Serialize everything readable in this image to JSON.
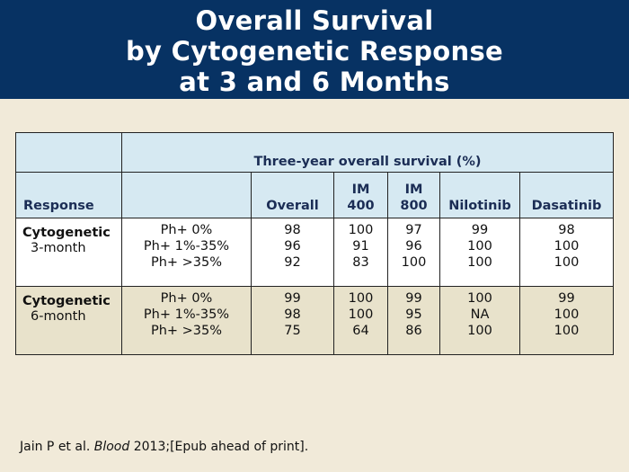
{
  "title": {
    "lines": [
      "Overall Survival",
      "by Cytogenetic Response",
      "at 3 and 6 Months"
    ]
  },
  "table": {
    "group_header": "Three-year overall survival (%)",
    "columns": {
      "response": "Response",
      "overall": "Overall",
      "im400_a": "IM",
      "im400_b": "400",
      "im800_a": "IM",
      "im800_b": "800",
      "nilotinib": "Nilotinib",
      "dasatinib": "Dasatinib"
    },
    "rows": [
      {
        "response": "Cytogenetic",
        "timepoint": "3-month",
        "ph": [
          "Ph+ 0%",
          "Ph+ 1%-35%",
          "Ph+ >35%"
        ],
        "overall": [
          "98",
          "96",
          "92"
        ],
        "im400": [
          "100",
          "91",
          "83"
        ],
        "im800": [
          "97",
          "96",
          "100"
        ],
        "nilotinib": [
          "99",
          "100",
          "100"
        ],
        "dasatinib": [
          "98",
          "100",
          "100"
        ]
      },
      {
        "response": "Cytogenetic",
        "timepoint": "6-month",
        "ph": [
          "Ph+ 0%",
          "Ph+ 1%-35%",
          "Ph+ >35%"
        ],
        "overall": [
          "99",
          "98",
          "75"
        ],
        "im400": [
          "100",
          "100",
          "64"
        ],
        "im800": [
          "99",
          "95",
          "86"
        ],
        "nilotinib": [
          "100",
          "NA",
          "100"
        ],
        "dasatinib": [
          "99",
          "100",
          "100"
        ]
      }
    ]
  },
  "citation": {
    "authors": "Jain P et al.",
    "journal": "Blood",
    "rest": "2013;[Epub ahead of print]."
  },
  "colors": {
    "title_bar": "#073263",
    "background": "#f1ead9",
    "header_fill": "#d6e9f2",
    "alt_row_fill": "#e8e2cb",
    "header_text": "#1b2d55"
  }
}
